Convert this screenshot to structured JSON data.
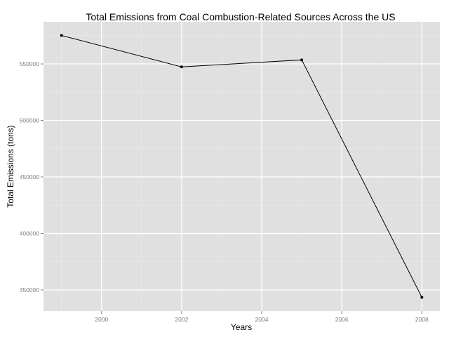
{
  "chart_data": {
    "type": "line",
    "title": "Total Emissions from Coal Combustion-Related Sources Across the US",
    "xlabel": "Years",
    "ylabel": "Total Emissions (tons)",
    "x": [
      1999,
      2002,
      2005,
      2008
    ],
    "series": [
      {
        "values": [
          575206,
          547380,
          553550,
          343432
        ]
      }
    ],
    "xlim": [
      1998.55,
      2008.45
    ],
    "ylim": [
      331339,
      587299
    ],
    "x_ticks": [
      2000,
      2002,
      2004,
      2006,
      2008
    ],
    "x_tick_labels": [
      "2000",
      "2002",
      "2004",
      "2006",
      "2008"
    ],
    "y_ticks": [
      350000,
      400000,
      450000,
      500000,
      550000
    ],
    "y_tick_labels": [
      "350000",
      "400000",
      "450000",
      "500000",
      "550000"
    ],
    "grid": true,
    "legend": "none",
    "colors": {
      "panel_background": "#E0E0E0",
      "grid_major": "#FFFFFF",
      "grid_minor": "#EBEBEB",
      "line": "#000000",
      "point": "#000000",
      "tick_text": "#7F7F7F",
      "tick_mark": "#7F7F7F"
    }
  }
}
